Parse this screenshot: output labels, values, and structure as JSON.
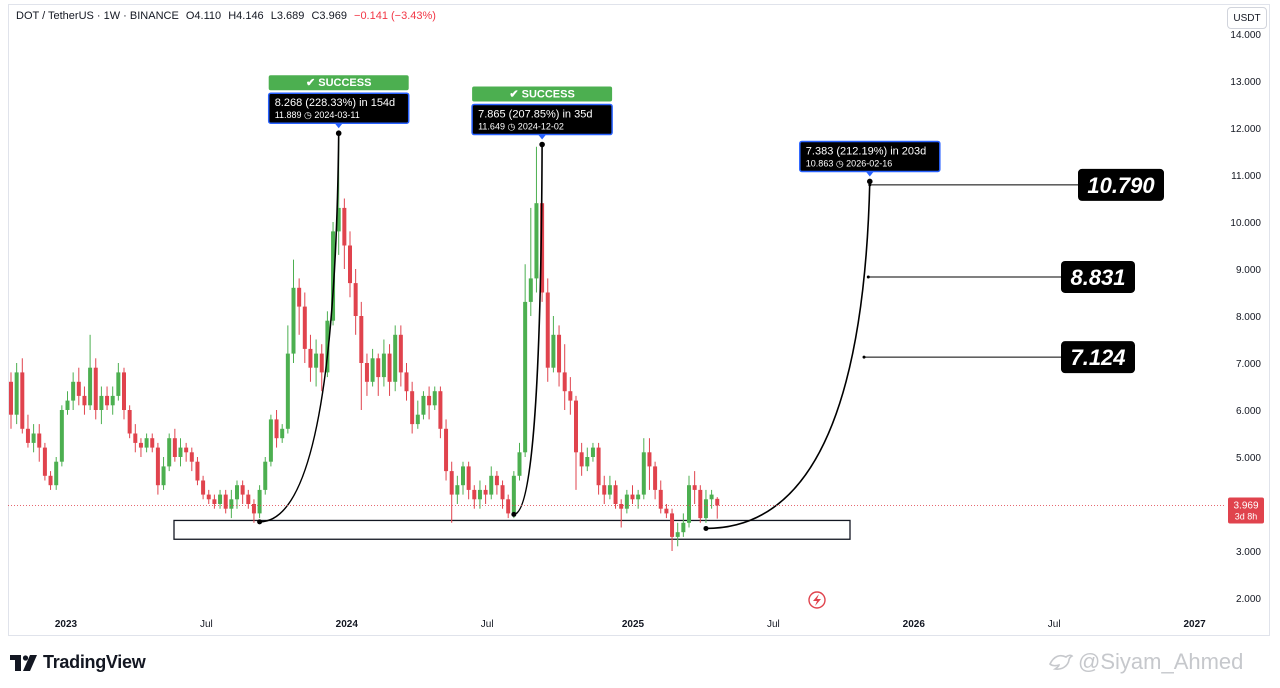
{
  "header": {
    "symbol": "DOT / TetherUS · 1W · BINANCE",
    "open": "O4.110",
    "high": "H4.146",
    "low": "L3.689",
    "close": "C3.969",
    "change": "−0.141 (−3.43%)"
  },
  "currency": "USDT",
  "last_price": {
    "value": "3.969",
    "countdown": "3d 8h"
  },
  "branding": {
    "logo_text": "TradingView",
    "author": "@Siyam_Ahmed"
  },
  "colors": {
    "up": "#26a69a",
    "candle_up": "#4caf50",
    "down": "#e0434d",
    "success": "#4caf50",
    "label_border": "#2962ff"
  },
  "chart_data": {
    "type": "candlestick",
    "ylim": [
      2.0,
      14.0
    ],
    "y_ticks": [
      "14.000",
      "13.000",
      "12.000",
      "11.000",
      "10.000",
      "9.000",
      "8.000",
      "7.000",
      "6.000",
      "5.000",
      "4.000",
      "3.000",
      "2.000"
    ],
    "x_ticks": [
      {
        "label": "2023",
        "date": "2023-01-02"
      },
      {
        "label": "Jul",
        "date": "2023-07-03"
      },
      {
        "label": "2024",
        "date": "2024-01-01"
      },
      {
        "label": "Jul",
        "date": "2024-07-01"
      },
      {
        "label": "2025",
        "date": "2025-01-06"
      },
      {
        "label": "Jul",
        "date": "2025-07-07"
      },
      {
        "label": "2026",
        "date": "2026-01-05"
      },
      {
        "label": "Jul",
        "date": "2026-07-06"
      },
      {
        "label": "2027",
        "date": "2027-01-04"
      }
    ],
    "candles": [
      {
        "o": 6.6,
        "c": 5.9,
        "h": 6.8,
        "l": 5.6
      },
      {
        "o": 5.9,
        "c": 6.8,
        "h": 7.0,
        "l": 5.7
      },
      {
        "o": 6.8,
        "c": 5.6,
        "h": 7.1,
        "l": 5.5
      },
      {
        "o": 5.6,
        "c": 5.3,
        "h": 5.9,
        "l": 5.2
      },
      {
        "o": 5.3,
        "c": 5.5,
        "h": 5.7,
        "l": 5.1
      },
      {
        "o": 5.5,
        "c": 5.2,
        "h": 5.7,
        "l": 4.9
      },
      {
        "o": 5.2,
        "c": 4.6,
        "h": 5.3,
        "l": 4.5
      },
      {
        "o": 4.6,
        "c": 4.4,
        "h": 4.7,
        "l": 4.3
      },
      {
        "o": 4.4,
        "c": 4.9,
        "h": 5.0,
        "l": 4.3
      },
      {
        "o": 4.9,
        "c": 6.0,
        "h": 6.1,
        "l": 4.8
      },
      {
        "o": 6.0,
        "c": 6.2,
        "h": 6.4,
        "l": 5.9
      },
      {
        "o": 6.2,
        "c": 6.6,
        "h": 6.8,
        "l": 6.0
      },
      {
        "o": 6.6,
        "c": 6.3,
        "h": 6.9,
        "l": 6.1
      },
      {
        "o": 6.3,
        "c": 6.1,
        "h": 6.5,
        "l": 5.9
      },
      {
        "o": 6.1,
        "c": 6.9,
        "h": 7.6,
        "l": 6.0
      },
      {
        "o": 6.9,
        "c": 6.0,
        "h": 7.1,
        "l": 5.8
      },
      {
        "o": 6.0,
        "c": 6.3,
        "h": 6.5,
        "l": 5.7
      },
      {
        "o": 6.3,
        "c": 6.1,
        "h": 6.5,
        "l": 6.0
      },
      {
        "o": 6.1,
        "c": 6.3,
        "h": 6.5,
        "l": 5.9
      },
      {
        "o": 6.3,
        "c": 6.8,
        "h": 7.0,
        "l": 6.2
      },
      {
        "o": 6.8,
        "c": 6.0,
        "h": 6.9,
        "l": 5.8
      },
      {
        "o": 6.0,
        "c": 5.5,
        "h": 6.1,
        "l": 5.4
      },
      {
        "o": 5.5,
        "c": 5.3,
        "h": 5.7,
        "l": 5.1
      },
      {
        "o": 5.3,
        "c": 5.2,
        "h": 5.4,
        "l": 5.0
      },
      {
        "o": 5.2,
        "c": 5.4,
        "h": 5.5,
        "l": 5.1
      },
      {
        "o": 5.4,
        "c": 5.2,
        "h": 5.5,
        "l": 5.1
      },
      {
        "o": 5.2,
        "c": 4.4,
        "h": 5.3,
        "l": 4.2
      },
      {
        "o": 4.4,
        "c": 4.8,
        "h": 5.0,
        "l": 4.3
      },
      {
        "o": 4.8,
        "c": 5.4,
        "h": 5.5,
        "l": 4.7
      },
      {
        "o": 5.4,
        "c": 5.0,
        "h": 5.6,
        "l": 4.9
      },
      {
        "o": 5.0,
        "c": 5.2,
        "h": 5.4,
        "l": 4.8
      },
      {
        "o": 5.2,
        "c": 5.1,
        "h": 5.3,
        "l": 4.9
      },
      {
        "o": 5.1,
        "c": 4.9,
        "h": 5.2,
        "l": 4.7
      },
      {
        "o": 4.9,
        "c": 4.5,
        "h": 5.0,
        "l": 4.4
      },
      {
        "o": 4.5,
        "c": 4.2,
        "h": 4.6,
        "l": 4.1
      },
      {
        "o": 4.2,
        "c": 4.1,
        "h": 4.3,
        "l": 4.0
      },
      {
        "o": 4.1,
        "c": 4.0,
        "h": 4.2,
        "l": 3.9
      },
      {
        "o": 4.0,
        "c": 4.2,
        "h": 4.3,
        "l": 3.9
      },
      {
        "o": 4.2,
        "c": 3.9,
        "h": 4.3,
        "l": 3.8
      },
      {
        "o": 3.9,
        "c": 4.1,
        "h": 4.3,
        "l": 3.7
      },
      {
        "o": 4.1,
        "c": 4.4,
        "h": 4.5,
        "l": 3.9
      },
      {
        "o": 4.4,
        "c": 4.2,
        "h": 4.5,
        "l": 4.0
      },
      {
        "o": 4.2,
        "c": 4.0,
        "h": 4.3,
        "l": 3.9
      },
      {
        "o": 4.0,
        "c": 3.8,
        "h": 4.1,
        "l": 3.6
      },
      {
        "o": 3.8,
        "c": 4.3,
        "h": 4.4,
        "l": 3.7
      },
      {
        "o": 4.3,
        "c": 4.9,
        "h": 5.0,
        "l": 4.2
      },
      {
        "o": 4.9,
        "c": 5.8,
        "h": 5.9,
        "l": 4.8
      },
      {
        "o": 5.8,
        "c": 5.4,
        "h": 6.0,
        "l": 5.2
      },
      {
        "o": 5.4,
        "c": 5.6,
        "h": 5.7,
        "l": 5.3
      },
      {
        "o": 5.6,
        "c": 7.2,
        "h": 7.8,
        "l": 5.5
      },
      {
        "o": 7.2,
        "c": 8.6,
        "h": 9.2,
        "l": 7.0
      },
      {
        "o": 8.6,
        "c": 8.2,
        "h": 8.8,
        "l": 7.6
      },
      {
        "o": 8.2,
        "c": 7.3,
        "h": 8.5,
        "l": 7.0
      },
      {
        "o": 7.3,
        "c": 6.9,
        "h": 7.6,
        "l": 6.6
      },
      {
        "o": 6.9,
        "c": 7.2,
        "h": 7.5,
        "l": 6.5
      },
      {
        "o": 7.2,
        "c": 6.8,
        "h": 7.4,
        "l": 6.4
      },
      {
        "o": 6.8,
        "c": 7.9,
        "h": 8.1,
        "l": 6.7
      },
      {
        "o": 7.9,
        "c": 9.8,
        "h": 10.0,
        "l": 7.8
      },
      {
        "o": 9.8,
        "c": 10.3,
        "h": 11.9,
        "l": 9.3
      },
      {
        "o": 10.3,
        "c": 9.5,
        "h": 10.5,
        "l": 9.0
      },
      {
        "o": 9.5,
        "c": 8.7,
        "h": 9.8,
        "l": 8.4
      },
      {
        "o": 8.7,
        "c": 8.0,
        "h": 9.0,
        "l": 7.6
      },
      {
        "o": 8.0,
        "c": 7.0,
        "h": 8.3,
        "l": 6.0
      },
      {
        "o": 7.0,
        "c": 6.6,
        "h": 7.2,
        "l": 6.3
      },
      {
        "o": 6.6,
        "c": 7.1,
        "h": 7.3,
        "l": 6.5
      },
      {
        "o": 7.1,
        "c": 6.7,
        "h": 7.2,
        "l": 6.3
      },
      {
        "o": 6.7,
        "c": 7.2,
        "h": 7.5,
        "l": 6.5
      },
      {
        "o": 7.2,
        "c": 6.6,
        "h": 7.4,
        "l": 6.3
      },
      {
        "o": 6.6,
        "c": 7.6,
        "h": 7.8,
        "l": 6.4
      },
      {
        "o": 7.6,
        "c": 6.8,
        "h": 7.8,
        "l": 6.5
      },
      {
        "o": 6.8,
        "c": 6.4,
        "h": 7.0,
        "l": 6.2
      },
      {
        "o": 6.4,
        "c": 5.7,
        "h": 6.6,
        "l": 5.5
      },
      {
        "o": 5.7,
        "c": 5.9,
        "h": 6.2,
        "l": 5.6
      },
      {
        "o": 5.9,
        "c": 6.3,
        "h": 6.4,
        "l": 5.8
      },
      {
        "o": 6.3,
        "c": 6.1,
        "h": 6.5,
        "l": 5.8
      },
      {
        "o": 6.1,
        "c": 6.4,
        "h": 6.5,
        "l": 6.0
      },
      {
        "o": 6.4,
        "c": 5.6,
        "h": 6.5,
        "l": 5.4
      },
      {
        "o": 5.6,
        "c": 4.7,
        "h": 5.8,
        "l": 4.5
      },
      {
        "o": 4.7,
        "c": 4.2,
        "h": 4.9,
        "l": 3.6
      },
      {
        "o": 4.2,
        "c": 4.4,
        "h": 4.6,
        "l": 4.0
      },
      {
        "o": 4.4,
        "c": 4.8,
        "h": 4.9,
        "l": 4.2
      },
      {
        "o": 4.8,
        "c": 4.3,
        "h": 4.9,
        "l": 4.1
      },
      {
        "o": 4.3,
        "c": 4.1,
        "h": 4.4,
        "l": 3.9
      },
      {
        "o": 4.1,
        "c": 4.3,
        "h": 4.5,
        "l": 3.9
      },
      {
        "o": 4.3,
        "c": 4.2,
        "h": 4.4,
        "l": 4.0
      },
      {
        "o": 4.2,
        "c": 4.6,
        "h": 4.8,
        "l": 4.1
      },
      {
        "o": 4.6,
        "c": 4.4,
        "h": 4.7,
        "l": 4.2
      },
      {
        "o": 4.4,
        "c": 4.1,
        "h": 4.5,
        "l": 3.9
      },
      {
        "o": 4.1,
        "c": 3.8,
        "h": 4.2,
        "l": 3.7
      },
      {
        "o": 3.8,
        "c": 4.6,
        "h": 4.7,
        "l": 3.7
      },
      {
        "o": 4.6,
        "c": 5.1,
        "h": 5.3,
        "l": 4.5
      },
      {
        "o": 5.1,
        "c": 8.3,
        "h": 9.1,
        "l": 5.0
      },
      {
        "o": 8.3,
        "c": 8.8,
        "h": 10.3,
        "l": 8.0
      },
      {
        "o": 8.8,
        "c": 10.4,
        "h": 11.6,
        "l": 8.5
      },
      {
        "o": 10.4,
        "c": 8.5,
        "h": 10.4,
        "l": 8.3
      },
      {
        "o": 8.5,
        "c": 6.9,
        "h": 8.8,
        "l": 6.6
      },
      {
        "o": 6.9,
        "c": 7.6,
        "h": 8.0,
        "l": 6.8
      },
      {
        "o": 7.6,
        "c": 6.8,
        "h": 7.8,
        "l": 6.5
      },
      {
        "o": 6.8,
        "c": 6.4,
        "h": 7.4,
        "l": 6.0
      },
      {
        "o": 6.4,
        "c": 6.2,
        "h": 6.7,
        "l": 5.9
      },
      {
        "o": 6.2,
        "c": 5.1,
        "h": 6.3,
        "l": 4.3
      },
      {
        "o": 5.1,
        "c": 4.8,
        "h": 5.3,
        "l": 4.6
      },
      {
        "o": 4.8,
        "c": 5.0,
        "h": 5.2,
        "l": 4.7
      },
      {
        "o": 5.0,
        "c": 5.2,
        "h": 5.3,
        "l": 4.9
      },
      {
        "o": 5.2,
        "c": 4.4,
        "h": 5.3,
        "l": 4.2
      },
      {
        "o": 4.4,
        "c": 4.2,
        "h": 4.6,
        "l": 4.0
      },
      {
        "o": 4.2,
        "c": 4.4,
        "h": 4.6,
        "l": 4.1
      },
      {
        "o": 4.4,
        "c": 4.0,
        "h": 4.5,
        "l": 3.9
      },
      {
        "o": 4.0,
        "c": 3.9,
        "h": 4.1,
        "l": 3.5
      },
      {
        "o": 3.9,
        "c": 4.2,
        "h": 4.3,
        "l": 3.8
      },
      {
        "o": 4.2,
        "c": 4.1,
        "h": 4.4,
        "l": 4.0
      },
      {
        "o": 4.1,
        "c": 4.2,
        "h": 4.3,
        "l": 3.9
      },
      {
        "o": 4.2,
        "c": 5.1,
        "h": 5.4,
        "l": 4.1
      },
      {
        "o": 5.1,
        "c": 4.8,
        "h": 5.4,
        "l": 4.3
      },
      {
        "o": 4.8,
        "c": 4.3,
        "h": 4.9,
        "l": 4.1
      },
      {
        "o": 4.3,
        "c": 3.9,
        "h": 4.5,
        "l": 3.8
      },
      {
        "o": 3.9,
        "c": 3.8,
        "h": 4.0,
        "l": 3.7
      },
      {
        "o": 3.8,
        "c": 3.3,
        "h": 3.9,
        "l": 3.0
      },
      {
        "o": 3.3,
        "c": 3.4,
        "h": 3.6,
        "l": 3.1
      },
      {
        "o": 3.4,
        "c": 3.6,
        "h": 3.8,
        "l": 3.3
      },
      {
        "o": 3.6,
        "c": 4.4,
        "h": 4.6,
        "l": 3.5
      },
      {
        "o": 4.4,
        "c": 4.3,
        "h": 4.7,
        "l": 4.0
      },
      {
        "o": 4.3,
        "c": 3.7,
        "h": 4.4,
        "l": 3.6
      },
      {
        "o": 3.7,
        "c": 4.1,
        "h": 4.3,
        "l": 3.6
      },
      {
        "o": 4.1,
        "c": 4.2,
        "h": 4.3,
        "l": 3.9
      },
      {
        "o": 4.11,
        "c": 3.969,
        "h": 4.146,
        "l": 3.689
      }
    ],
    "annotations": {
      "success_label": "✔ SUCCESS",
      "moves": [
        {
          "line1": "8.268 (228.33%) in 154d",
          "line2": "11.889 ◷ 2024-03-11",
          "badge": true,
          "start_index": 44,
          "end_index": 58,
          "start_value": 3.62,
          "end_value": 11.889
        },
        {
          "line1": "7.865 (207.85%) in 35d",
          "line2": "11.649 ◷ 2024-12-02",
          "badge": true,
          "start_index": 89,
          "end_index": 94,
          "start_value": 3.78,
          "end_value": 11.649
        },
        {
          "line1": "7.383 (212.19%) in 203d",
          "line2": "10.863 ◷ 2026-02-16",
          "badge": false,
          "start_index": 123,
          "end_index": 152,
          "start_value": 3.48,
          "end_value": 10.863
        }
      ],
      "targets": [
        {
          "label": "10.790",
          "value": 10.79,
          "curve_t": 1.0
        },
        {
          "label": "8.831",
          "value": 8.831,
          "curve_t": 0.94
        },
        {
          "label": "7.124",
          "value": 7.124,
          "curve_t": 0.85
        }
      ],
      "support_zone": {
        "top": 3.65,
        "bottom": 3.25,
        "start_index": 24,
        "end_index": 132
      }
    }
  }
}
